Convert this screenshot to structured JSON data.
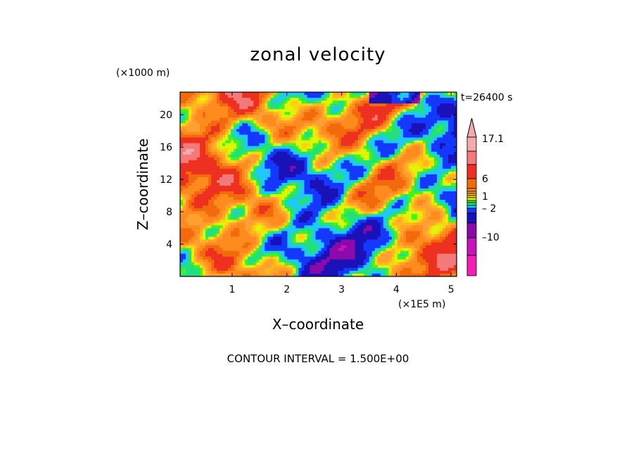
{
  "chart_data": {
    "type": "heatmap",
    "title": "zonal velocity",
    "xlabel": "X–coordinate",
    "ylabel": "Z–coordinate",
    "x_unit": "(×1E5 m)",
    "y_unit": "(×1000 m)",
    "time_label": "t=26400 s",
    "xlim": [
      0.05,
      5.1
    ],
    "ylim": [
      0,
      22.8
    ],
    "x_ticks": [
      "1",
      "2",
      "3",
      "4",
      "5"
    ],
    "y_ticks": [
      "4",
      "8",
      "12",
      "16",
      "20"
    ],
    "contour_interval": "CONTOUR INTERVAL = 1.500E+00",
    "colorbar": {
      "labels": [
        "17.1",
        "6",
        "1",
        "– 2",
        "–10"
      ],
      "label_values": [
        17.1,
        6,
        1,
        -2,
        -10
      ],
      "levels": [
        -16.0,
        -13.0,
        -10.0,
        -7.0,
        -4.0,
        -2.0,
        -1.0,
        0.0,
        0.5,
        1.0,
        1.5,
        2.0,
        3.0,
        4.5,
        6.0,
        9.0,
        12.0,
        17.1
      ],
      "colors": [
        "#f21fb6",
        "#c812bb",
        "#8c0aaa",
        "#1a12b8",
        "#1438ff",
        "#1ec8ff",
        "#22e07e",
        "#44f220",
        "#ddf50a",
        "#ffd40e",
        "#ffb81c",
        "#ffa030",
        "#ff8a1e",
        "#f36a0c",
        "#ee3020",
        "#f47a7a",
        "#f4aaaa",
        "#f4aaaa"
      ],
      "extend_top": true
    }
  }
}
